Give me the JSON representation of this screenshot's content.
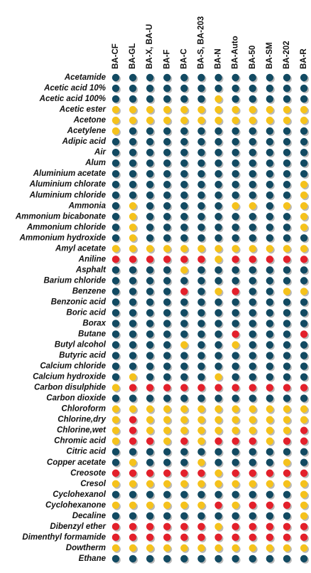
{
  "colors": {
    "b": "#124a62",
    "y": "#f5c21c",
    "r": "#e3202b"
  },
  "columns": [
    "BA-CF",
    "BA-GL",
    "BA-X, BA-U",
    "BA-F",
    "BA-C",
    "BA-S, BA-203",
    "BA-N",
    "BA-Auto",
    "BA-50",
    "BA-SM",
    "BA-202",
    "BA-R"
  ],
  "rows": [
    {
      "name": "Acetamide",
      "ratings": [
        "b",
        "b",
        "b",
        "b",
        "b",
        "b",
        "b",
        "b",
        "b",
        "b",
        "b",
        "b"
      ]
    },
    {
      "name": "Acetic acid 10%",
      "ratings": [
        "b",
        "b",
        "b",
        "b",
        "b",
        "b",
        "b",
        "b",
        "b",
        "b",
        "b",
        "b"
      ]
    },
    {
      "name": "Acetic acid 100%",
      "ratings": [
        "b",
        "b",
        "b",
        "b",
        "b",
        "b",
        "y",
        "b",
        "b",
        "b",
        "b",
        "b"
      ]
    },
    {
      "name": "Acetic ester",
      "ratings": [
        "y",
        "y",
        "y",
        "y",
        "y",
        "y",
        "y",
        "y",
        "y",
        "y",
        "y",
        "y"
      ]
    },
    {
      "name": "Acetone",
      "ratings": [
        "y",
        "y",
        "y",
        "y",
        "y",
        "y",
        "y",
        "y",
        "y",
        "y",
        "y",
        "y"
      ]
    },
    {
      "name": "Acetylene",
      "ratings": [
        "y",
        "b",
        "b",
        "b",
        "b",
        "b",
        "b",
        "b",
        "b",
        "b",
        "b",
        "b"
      ]
    },
    {
      "name": "Adipic acid",
      "ratings": [
        "b",
        "b",
        "b",
        "b",
        "b",
        "b",
        "b",
        "b",
        "b",
        "b",
        "b",
        "b"
      ]
    },
    {
      "name": "Air",
      "ratings": [
        "b",
        "b",
        "b",
        "b",
        "b",
        "b",
        "b",
        "b",
        "b",
        "b",
        "b",
        "b"
      ]
    },
    {
      "name": "Alum",
      "ratings": [
        "b",
        "b",
        "b",
        "b",
        "b",
        "b",
        "b",
        "b",
        "b",
        "b",
        "b",
        "b"
      ]
    },
    {
      "name": "Aluminium acetate",
      "ratings": [
        "b",
        "b",
        "b",
        "b",
        "b",
        "b",
        "b",
        "b",
        "b",
        "b",
        "b",
        "b"
      ]
    },
    {
      "name": "Aluminium chlorate",
      "ratings": [
        "b",
        "b",
        "b",
        "b",
        "b",
        "b",
        "b",
        "b",
        "b",
        "b",
        "b",
        "y"
      ]
    },
    {
      "name": "Aluminium chloride",
      "ratings": [
        "b",
        "b",
        "b",
        "b",
        "b",
        "b",
        "b",
        "b",
        "b",
        "b",
        "b",
        "y"
      ]
    },
    {
      "name": "Ammonia",
      "ratings": [
        "b",
        "y",
        "b",
        "b",
        "b",
        "b",
        "b",
        "y",
        "y",
        "b",
        "y",
        "y"
      ]
    },
    {
      "name": "Ammonium bicabonate",
      "ratings": [
        "b",
        "y",
        "b",
        "b",
        "b",
        "b",
        "b",
        "b",
        "b",
        "b",
        "b",
        "y"
      ]
    },
    {
      "name": "Ammonium chloride",
      "ratings": [
        "b",
        "y",
        "b",
        "b",
        "b",
        "b",
        "b",
        "b",
        "b",
        "b",
        "b",
        "y"
      ]
    },
    {
      "name": "Ammonium hydroxide",
      "ratings": [
        "b",
        "y",
        "b",
        "b",
        "b",
        "b",
        "b",
        "b",
        "b",
        "b",
        "b",
        "b"
      ]
    },
    {
      "name": "Amyl acetate",
      "ratings": [
        "y",
        "y",
        "y",
        "y",
        "y",
        "y",
        "y",
        "y",
        "y",
        "y",
        "y",
        "y"
      ]
    },
    {
      "name": "Aniline",
      "ratings": [
        "r",
        "r",
        "r",
        "r",
        "r",
        "r",
        "y",
        "r",
        "r",
        "r",
        "r",
        "r"
      ]
    },
    {
      "name": "Asphalt",
      "ratings": [
        "b",
        "b",
        "b",
        "b",
        "y",
        "b",
        "b",
        "b",
        "b",
        "b",
        "b",
        "b"
      ]
    },
    {
      "name": "Barium chloride",
      "ratings": [
        "b",
        "b",
        "b",
        "b",
        "b",
        "b",
        "b",
        "b",
        "b",
        "b",
        "b",
        "b"
      ]
    },
    {
      "name": "Benzene",
      "ratings": [
        "b",
        "b",
        "b",
        "b",
        "r",
        "b",
        "y",
        "r",
        "b",
        "b",
        "y",
        "y"
      ]
    },
    {
      "name": "Benzonic acid",
      "ratings": [
        "b",
        "b",
        "b",
        "b",
        "b",
        "b",
        "b",
        "b",
        "b",
        "b",
        "b",
        "b"
      ]
    },
    {
      "name": "Boric acid",
      "ratings": [
        "b",
        "b",
        "b",
        "b",
        "b",
        "b",
        "b",
        "b",
        "b",
        "b",
        "b",
        "b"
      ]
    },
    {
      "name": "Borax",
      "ratings": [
        "b",
        "b",
        "b",
        "b",
        "b",
        "b",
        "b",
        "b",
        "b",
        "b",
        "b",
        "b"
      ]
    },
    {
      "name": "Butane",
      "ratings": [
        "b",
        "b",
        "b",
        "b",
        "b",
        "b",
        "b",
        "r",
        "b",
        "b",
        "b",
        "r"
      ]
    },
    {
      "name": "Butyl alcohol",
      "ratings": [
        "b",
        "b",
        "b",
        "b",
        "y",
        "b",
        "b",
        "y",
        "b",
        "b",
        "b",
        "b"
      ]
    },
    {
      "name": "Butyric acid",
      "ratings": [
        "b",
        "b",
        "b",
        "b",
        "b",
        "b",
        "b",
        "b",
        "b",
        "b",
        "b",
        "b"
      ]
    },
    {
      "name": "Calcium chloride",
      "ratings": [
        "b",
        "b",
        "b",
        "b",
        "b",
        "b",
        "b",
        "b",
        "b",
        "b",
        "b",
        "b"
      ]
    },
    {
      "name": "Calcium hydroxide",
      "ratings": [
        "b",
        "y",
        "b",
        "b",
        "b",
        "b",
        "y",
        "b",
        "b",
        "b",
        "b",
        "b"
      ]
    },
    {
      "name": "Carbon disulphide",
      "ratings": [
        "y",
        "r",
        "r",
        "r",
        "r",
        "r",
        "r",
        "r",
        "r",
        "r",
        "r",
        "r"
      ]
    },
    {
      "name": "Carbon dioxide",
      "ratings": [
        "b",
        "b",
        "b",
        "b",
        "b",
        "b",
        "b",
        "b",
        "b",
        "b",
        "b",
        "b"
      ]
    },
    {
      "name": "Chloroform",
      "ratings": [
        "y",
        "y",
        "y",
        "y",
        "y",
        "y",
        "y",
        "y",
        "y",
        "y",
        "y",
        "y"
      ]
    },
    {
      "name": "Chlorine,dry",
      "ratings": [
        "y",
        "r",
        "y",
        "y",
        "y",
        "y",
        "y",
        "y",
        "y",
        "y",
        "y",
        "y"
      ]
    },
    {
      "name": "Chlorine,wet",
      "ratings": [
        "y",
        "r",
        "y",
        "y",
        "y",
        "y",
        "y",
        "y",
        "y",
        "y",
        "y",
        "r"
      ]
    },
    {
      "name": "Chromic acid",
      "ratings": [
        "y",
        "r",
        "r",
        "y",
        "r",
        "y",
        "r",
        "r",
        "r",
        "y",
        "r",
        "r"
      ]
    },
    {
      "name": "Citric acid",
      "ratings": [
        "b",
        "b",
        "b",
        "b",
        "b",
        "b",
        "b",
        "b",
        "b",
        "b",
        "b",
        "b"
      ]
    },
    {
      "name": "Copper acetate",
      "ratings": [
        "b",
        "y",
        "b",
        "b",
        "b",
        "y",
        "b",
        "b",
        "b",
        "b",
        "y",
        "b"
      ]
    },
    {
      "name": "Creosote",
      "ratings": [
        "r",
        "r",
        "r",
        "r",
        "r",
        "r",
        "y",
        "r",
        "r",
        "r",
        "r",
        "r"
      ]
    },
    {
      "name": "Cresol",
      "ratings": [
        "y",
        "y",
        "y",
        "y",
        "y",
        "y",
        "y",
        "y",
        "y",
        "y",
        "y",
        "y"
      ]
    },
    {
      "name": "Cyclohexanol",
      "ratings": [
        "b",
        "b",
        "b",
        "b",
        "b",
        "b",
        "b",
        "b",
        "b",
        "b",
        "b",
        "y"
      ]
    },
    {
      "name": "Cyclohexanone",
      "ratings": [
        "y",
        "y",
        "y",
        "y",
        "y",
        "y",
        "r",
        "y",
        "r",
        "r",
        "r",
        "y"
      ]
    },
    {
      "name": "Decaline",
      "ratings": [
        "b",
        "b",
        "b",
        "b",
        "b",
        "b",
        "b",
        "b",
        "b",
        "b",
        "b",
        "y"
      ]
    },
    {
      "name": "Dibenzyl ether",
      "ratings": [
        "r",
        "r",
        "r",
        "r",
        "r",
        "r",
        "y",
        "r",
        "r",
        "r",
        "r",
        "r"
      ]
    },
    {
      "name": "Dimenthyl formamide",
      "ratings": [
        "r",
        "r",
        "r",
        "r",
        "r",
        "r",
        "r",
        "r",
        "r",
        "r",
        "r",
        "r"
      ]
    },
    {
      "name": "Dowtherm",
      "ratings": [
        "y",
        "y",
        "y",
        "y",
        "y",
        "y",
        "y",
        "y",
        "y",
        "y",
        "y",
        "y"
      ]
    },
    {
      "name": "Ethane",
      "ratings": [
        "b",
        "b",
        "b",
        "b",
        "b",
        "b",
        "b",
        "b",
        "b",
        "b",
        "b",
        "b"
      ]
    }
  ]
}
